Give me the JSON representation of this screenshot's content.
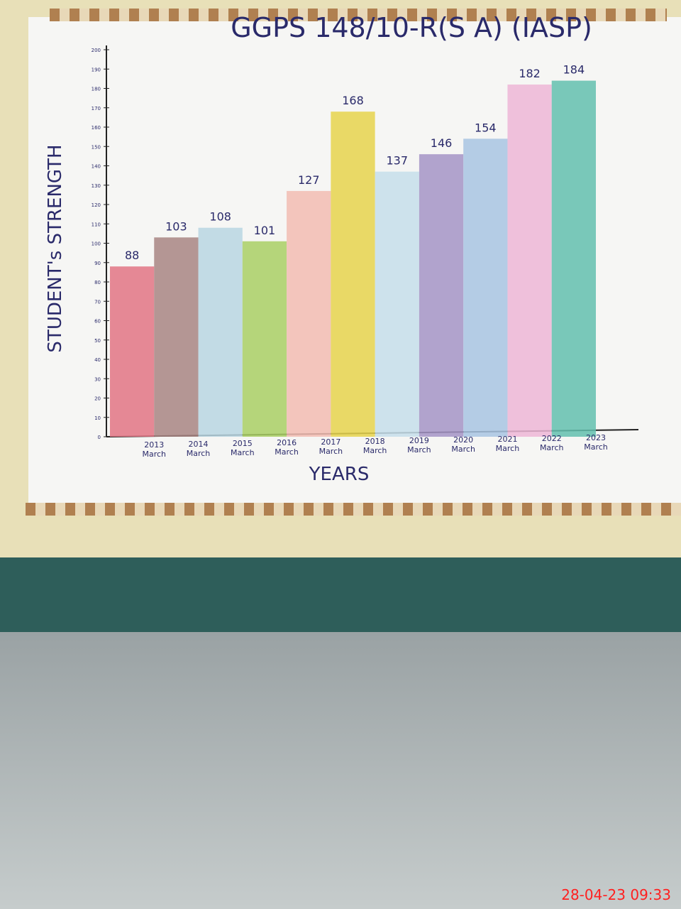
{
  "chart_data": {
    "type": "bar",
    "title": "GGPS 148/10-R(S A) (IASP)",
    "y_label": "STUDENT's STRENGTH",
    "x_label": "YEARS",
    "categories": [
      "2013 March",
      "2014 March",
      "2015 March",
      "2016 March",
      "2017 March",
      "2018 March",
      "2019 March",
      "2020 March",
      "2021 March",
      "2022 March",
      "2023 March"
    ],
    "values": [
      88,
      103,
      108,
      101,
      127,
      168,
      137,
      146,
      154,
      182,
      184
    ],
    "colors": [
      "#e27484",
      "#a88582",
      "#b9d6e2",
      "#a9cf64",
      "#f2bcb2",
      "#e6d34c",
      "#c6deea",
      "#a594c6",
      "#a8c4e2",
      "#edb6d6",
      "#63c0ae"
    ],
    "ylim": [
      0,
      200
    ],
    "yticks": [
      0,
      10,
      20,
      30,
      40,
      50,
      60,
      70,
      80,
      90,
      100,
      110,
      120,
      130,
      140,
      150,
      160,
      170,
      180,
      190,
      200
    ]
  },
  "timestamp": "28-04-23  09:33"
}
